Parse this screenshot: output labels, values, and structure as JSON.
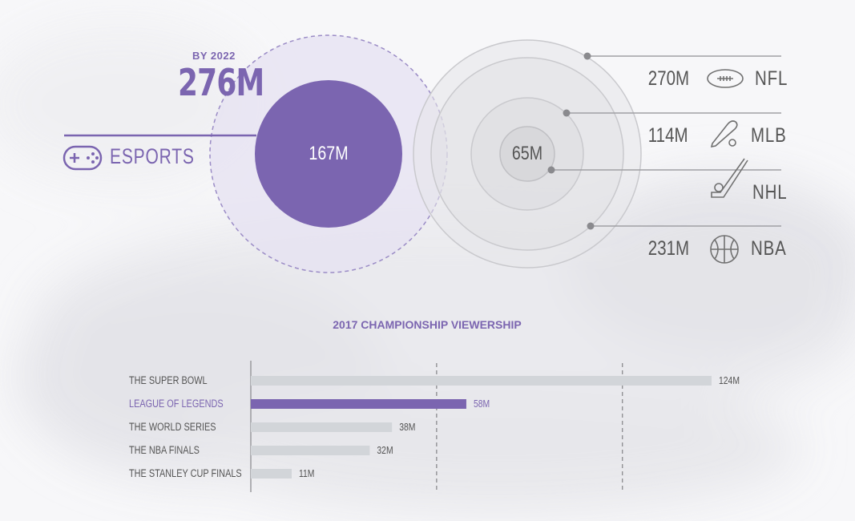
{
  "colors": {
    "purple": "#7b65b0",
    "purple_light": "#9b8cc6",
    "gray_bar": "#d2d5d9",
    "gray_text": "#555555",
    "gray_line": "#9a9a9a"
  },
  "projection": {
    "label": "BY 2022",
    "value": "276M"
  },
  "esports": {
    "icon": "gamepad-icon",
    "label": "ESPORTS",
    "value": "167M"
  },
  "center": {
    "value": "65M"
  },
  "sports": [
    {
      "value": "270M",
      "name": "NFL",
      "icon": "football-icon"
    },
    {
      "value": "114M",
      "name": "MLB",
      "icon": "baseball-bat-icon"
    },
    {
      "value": "",
      "name": "NHL",
      "icon": "hockey-stick-icon"
    },
    {
      "value": "231M",
      "name": "NBA",
      "icon": "basketball-icon"
    }
  ],
  "chart_data": {
    "type": "bar",
    "orientation": "horizontal",
    "title": "2017 CHAMPIONSHIP VIEWERSHIP",
    "categories": [
      "THE SUPER BOWL",
      "LEAGUE OF LEGENDS",
      "THE WORLD SERIES",
      "THE NBA FINALS",
      "THE STANLEY CUP FINALS"
    ],
    "values": [
      124,
      58,
      38,
      32,
      11
    ],
    "value_labels": [
      "124M",
      "58M",
      "38M",
      "32M",
      "11M"
    ],
    "highlight": "LEAGUE OF LEGENDS",
    "xlim": [
      0,
      124
    ],
    "gridlines": [
      50,
      100
    ],
    "unit": "M"
  }
}
